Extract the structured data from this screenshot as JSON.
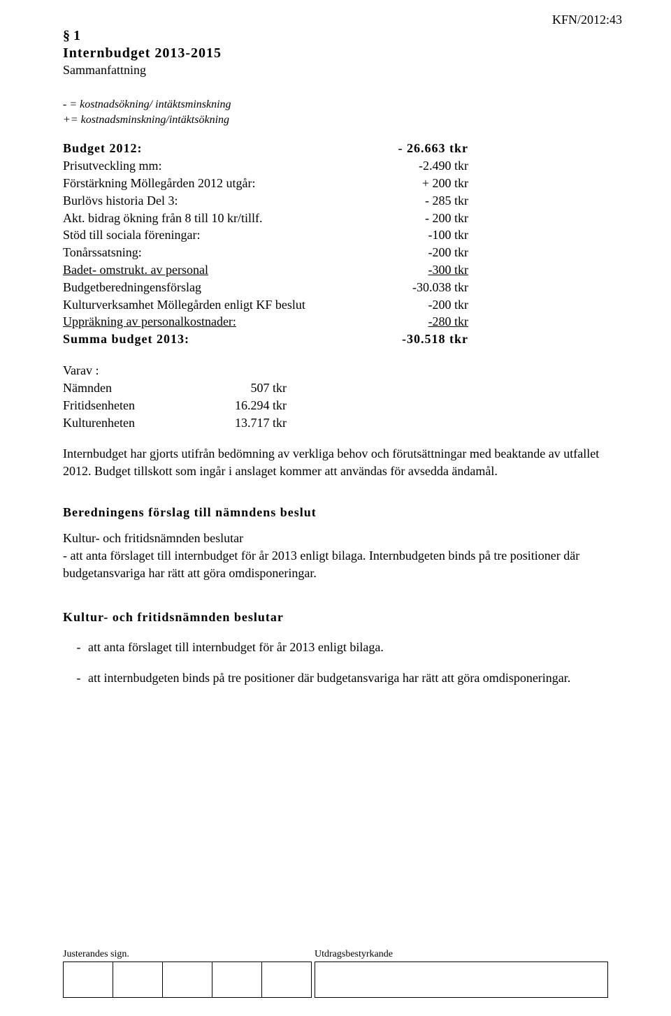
{
  "header_ref": "KFN/2012:43",
  "section_num": "§ 1",
  "title": "Internbudget 2013-2015",
  "subtitle": "Sammanfattning",
  "note_line1": "- = kostnadsökning/ intäktsminskning",
  "note_line2": "+= kostnadsminskning/intäktsökning",
  "budget": [
    {
      "label": "Budget 2012:",
      "value": "- 26.663 tkr",
      "bold": true
    },
    {
      "label": "Prisutveckling mm:",
      "value": "-2.490 tkr"
    },
    {
      "label": "Förstärkning Möllegården 2012 utgår:",
      "value": "+ 200 tkr"
    },
    {
      "label": "Burlövs historia Del 3:",
      "value": "- 285 tkr"
    },
    {
      "label": "Akt. bidrag ökning från 8 till 10 kr/tillf.",
      "value": "- 200 tkr"
    },
    {
      "label": "Stöd till sociala föreningar:",
      "value": "-100 tkr"
    },
    {
      "label": "Tonårssatsning:",
      "value": "-200 tkr"
    },
    {
      "label": "Badet- omstrukt. av personal",
      "value": "-300 tkr",
      "underline": true
    },
    {
      "label": "Budgetberedningensförslag",
      "value": "-30.038 tkr"
    },
    {
      "label": "Kulturverksamhet Möllegården enligt KF beslut",
      "value": "-200 tkr"
    },
    {
      "label": "Uppräkning av personalkostnader:",
      "value": "-280 tkr",
      "underline": true
    },
    {
      "label": "Summa budget 2013:",
      "value": "-30.518 tkr",
      "bold": true
    }
  ],
  "varav_title": "Varav :",
  "varav": [
    {
      "label": "Nämnden",
      "value": "507  tkr"
    },
    {
      "label": "Fritidsenheten",
      "value": "16.294 tkr"
    },
    {
      "label": "Kulturenheten",
      "value": "13.717  tkr"
    }
  ],
  "para1": "Internbudget har gjorts  utifrån bedömning av verkliga behov och förutsättningar  med beaktande av utfallet 2012. Budget tillskott som ingår i anslaget kommer att användas för avsedda ändamål.",
  "heading1": "Beredningens förslag till nämndens beslut",
  "para2": "Kultur- och fritidsnämnden beslutar",
  "para3": "- att anta förslaget till internbudget för år 2013 enligt bilaga. Internbudgeten binds på tre positioner där budgetansvariga har rätt att göra omdisponeringar.",
  "heading2": "Kultur- och fritidsnämnden beslutar",
  "bullets": [
    "att anta förslaget till internbudget för år 2013 enligt bilaga.",
    "att internbudgeten binds på tre positioner där budgetansvariga har rätt att göra omdisponeringar."
  ],
  "footer_left": "Justerandes sign.",
  "footer_right": "Utdragsbestyrkande"
}
